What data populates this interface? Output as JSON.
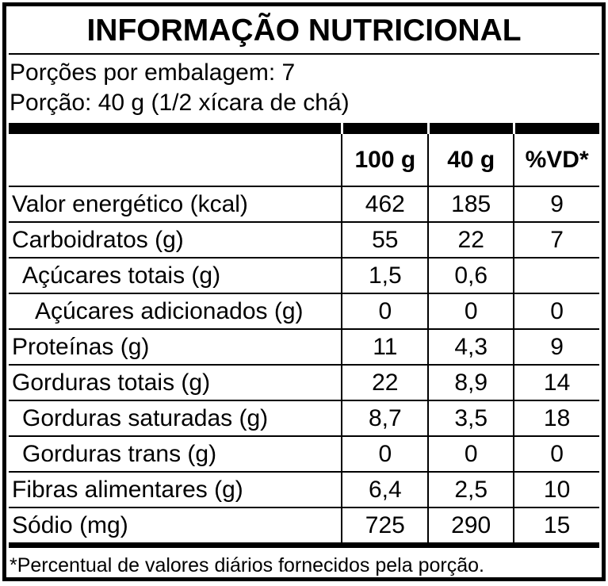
{
  "label": {
    "title": "INFORMAÇÃO NUTRICIONAL",
    "servings_per_package": "Porções por embalagem: 7",
    "serving_size": "Porção: 40 g (1/2 xícara de chá)",
    "footnote": "*Percentual de valores diários fornecidos pela porção."
  },
  "colors": {
    "text": "#000000",
    "background": "#ffffff"
  },
  "table": {
    "columns": {
      "per100": "100 g",
      "per40": "40 g",
      "vd": "%VD*"
    },
    "rows": [
      {
        "label": "Valor energético (kcal)",
        "per100": "462",
        "per40": "185",
        "vd": "9",
        "indent": 0
      },
      {
        "label": "Carboidratos (g)",
        "per100": "55",
        "per40": "22",
        "vd": "7",
        "indent": 0
      },
      {
        "label": "Açúcares totais (g)",
        "per100": "1,5",
        "per40": "0,6",
        "vd": "",
        "indent": 1
      },
      {
        "label": "Açúcares adicionados (g)",
        "per100": "0",
        "per40": "0",
        "vd": "0",
        "indent": 2
      },
      {
        "label": "Proteínas (g)",
        "per100": "11",
        "per40": "4,3",
        "vd": "9",
        "indent": 0
      },
      {
        "label": "Gorduras totais (g)",
        "per100": "22",
        "per40": "8,9",
        "vd": "14",
        "indent": 0
      },
      {
        "label": "Gorduras saturadas (g)",
        "per100": "8,7",
        "per40": "3,5",
        "vd": "18",
        "indent": 1
      },
      {
        "label": "Gorduras trans (g)",
        "per100": "0",
        "per40": "0",
        "vd": "0",
        "indent": 1
      },
      {
        "label": "Fibras alimentares (g)",
        "per100": "6,4",
        "per40": "2,5",
        "vd": "10",
        "indent": 0
      },
      {
        "label": "Sódio (mg)",
        "per100": "725",
        "per40": "290",
        "vd": "15",
        "indent": 0
      }
    ]
  }
}
